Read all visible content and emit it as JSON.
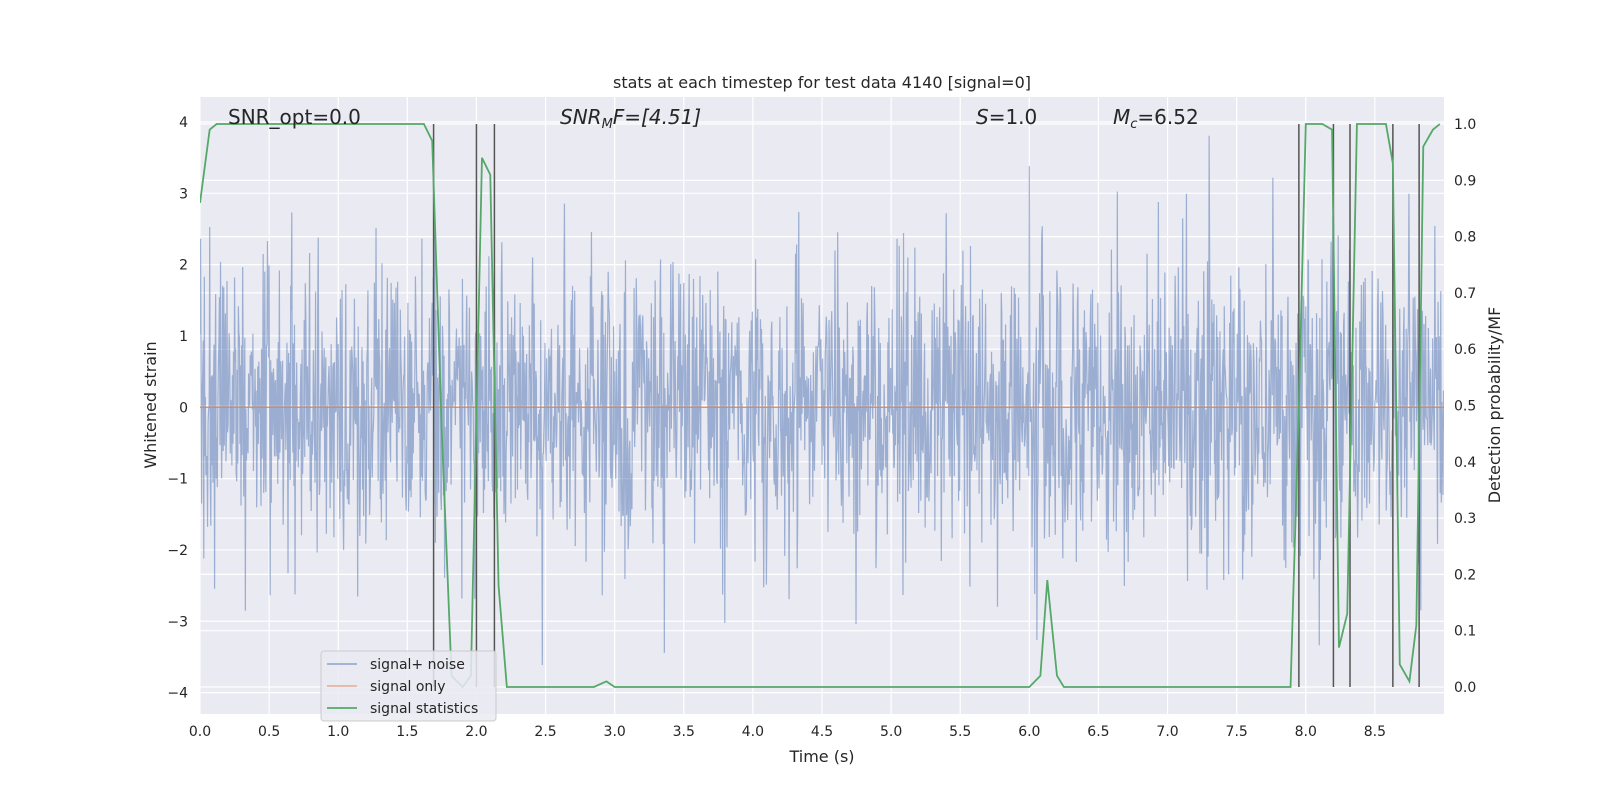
{
  "chart_data": {
    "type": "line",
    "title": "stats at each timestep for test data 4140 [signal=0]",
    "xlabel": "Time (s)",
    "ylabel": "Whitened strain",
    "y2label": "Detection probability/MF",
    "xlim": [
      0.0,
      9.0
    ],
    "ylim": [
      -4.3,
      4.35
    ],
    "y2lim": [
      -0.048,
      1.048
    ],
    "xticks": [
      0.0,
      0.5,
      1.0,
      1.5,
      2.0,
      2.5,
      3.0,
      3.5,
      4.0,
      4.5,
      5.0,
      5.5,
      6.0,
      6.5,
      7.0,
      7.5,
      8.0,
      8.5
    ],
    "xtick_labels": [
      "0.0",
      "0.5",
      "1.0",
      "1.5",
      "2.0",
      "2.5",
      "3.0",
      "3.5",
      "4.0",
      "4.5",
      "5.0",
      "5.5",
      "6.0",
      "6.5",
      "7.0",
      "7.5",
      "8.0",
      "8.5"
    ],
    "yticks": [
      -4,
      -3,
      -2,
      -1,
      0,
      1,
      2,
      3,
      4
    ],
    "ytick_labels": [
      "−4",
      "−3",
      "−2",
      "−1",
      "0",
      "1",
      "2",
      "3",
      "4"
    ],
    "y2ticks": [
      0.0,
      0.1,
      0.2,
      0.3,
      0.4,
      0.5,
      0.6,
      0.7,
      0.8,
      0.9,
      1.0
    ],
    "y2tick_labels": [
      "0.0",
      "0.1",
      "0.2",
      "0.3",
      "0.4",
      "0.5",
      "0.6",
      "0.7",
      "0.8",
      "0.9",
      "1.0"
    ],
    "grid": true,
    "legend_placement": "lower-left",
    "annotations": {
      "snr_opt": "SNR_opt=0.0",
      "snr_mf_main": "SNR",
      "snr_mf_sub": "M",
      "snr_mf_rest": "F=[4.51]",
      "s_main": "S",
      "s_rest": "=1.0",
      "mc_main": "M",
      "mc_sub": "c",
      "mc_rest": "=6.52"
    },
    "series": [
      {
        "name": "signal+ noise",
        "color": "#4c72b0",
        "sample_rate": 256,
        "envelope_hint": "noise amplitude roughly +/-1.6 with spikes up to about +/-3.9"
      },
      {
        "name": "signal only",
        "color": "#dd8452",
        "constant_value": 0.0
      },
      {
        "name": "signal statistics",
        "color": "#55a868",
        "axis": "right",
        "x": [
          0.0,
          0.07,
          0.12,
          0.5,
          1.0,
          1.62,
          1.68,
          1.75,
          1.82,
          1.9,
          1.96,
          2.04,
          2.1,
          2.16,
          2.22,
          2.5,
          2.85,
          2.94,
          3.0,
          3.4,
          4.0,
          5.0,
          5.5,
          6.0,
          6.08,
          6.13,
          6.2,
          6.25,
          6.5,
          7.0,
          7.89,
          7.95,
          8.0,
          8.12,
          8.19,
          8.24,
          8.3,
          8.37,
          8.42,
          8.58,
          8.63,
          8.68,
          8.75,
          8.8,
          8.85,
          8.92,
          8.97
        ],
        "y": [
          0.86,
          0.99,
          1.0,
          1.0,
          1.0,
          1.0,
          0.97,
          0.45,
          0.02,
          0.0,
          0.02,
          0.94,
          0.91,
          0.18,
          0.0,
          0.0,
          0.0,
          0.01,
          0.0,
          0.0,
          0.0,
          0.0,
          0.0,
          0.0,
          0.02,
          0.19,
          0.02,
          0.0,
          0.0,
          0.0,
          0.0,
          0.5,
          1.0,
          1.0,
          0.99,
          0.07,
          0.13,
          1.0,
          1.0,
          1.0,
          0.93,
          0.04,
          0.01,
          0.11,
          0.96,
          0.99,
          1.0
        ]
      }
    ],
    "vertical_lines_x": [
      1.69,
      2.0,
      2.13,
      7.95,
      8.2,
      8.32,
      8.63,
      8.82
    ]
  }
}
